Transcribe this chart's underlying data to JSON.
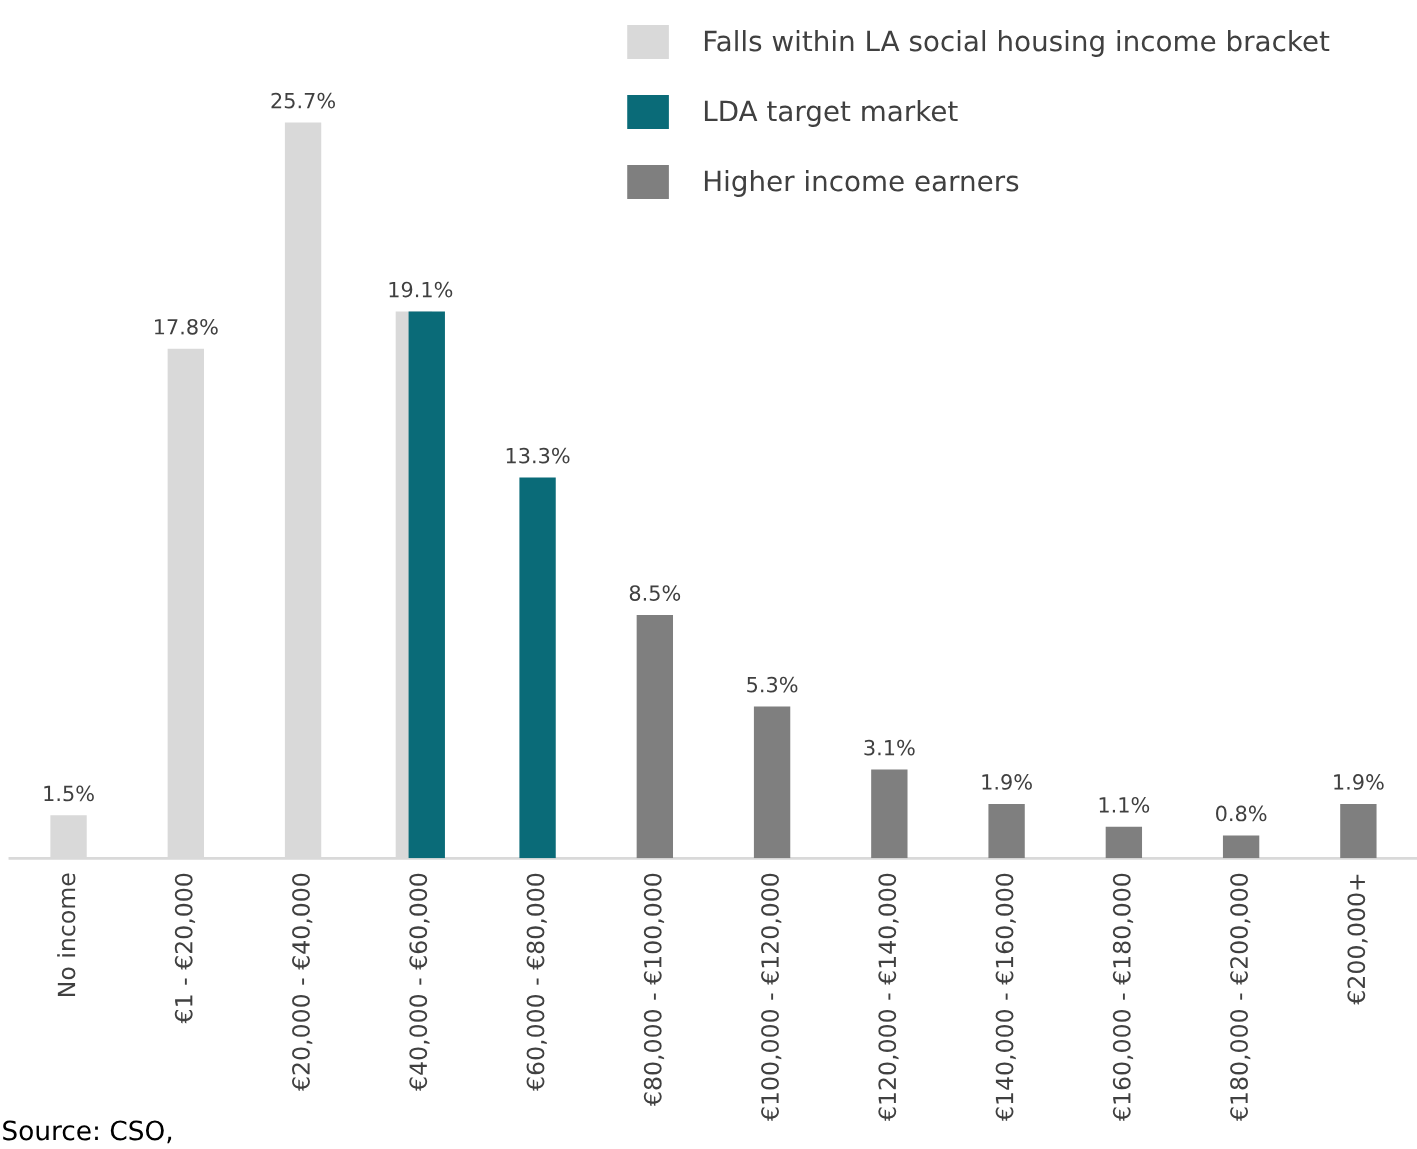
{
  "chart_data": {
    "type": "bar",
    "categories": [
      "No income",
      "€1 - €20,000",
      "€20,000 - €40,000",
      "€40,000 - €60,000",
      "€60,000 - €80,000",
      "€80,000 - €100,000",
      "€100,000 - €120,000",
      "€120,000 - €140,000",
      "€140,000 - €160,000",
      "€160,000 - €180,000",
      "€180,000 - €200,000",
      "€200,000+"
    ],
    "series": [
      {
        "name": "Falls within LA social housing income bracket",
        "color": "#d9d9d9",
        "values": [
          1.5,
          17.8,
          25.7,
          19.1,
          null,
          null,
          null,
          null,
          null,
          null,
          null,
          null
        ],
        "value_labels": [
          "1.5%",
          "17.8%",
          "25.7%",
          null,
          null,
          null,
          null,
          null,
          null,
          null,
          null,
          null
        ]
      },
      {
        "name": "LDA target market",
        "color": "#0a6b78",
        "values": [
          null,
          null,
          null,
          19.1,
          13.3,
          null,
          null,
          null,
          null,
          null,
          null,
          null
        ],
        "value_labels": [
          null,
          null,
          null,
          "19.1%",
          "13.3%",
          null,
          null,
          null,
          null,
          null,
          null,
          null
        ]
      },
      {
        "name": "Higher income earners",
        "color": "#7f7f7f",
        "values": [
          null,
          null,
          null,
          null,
          null,
          8.5,
          5.3,
          3.1,
          1.9,
          1.1,
          0.8,
          1.9
        ],
        "value_labels": [
          null,
          null,
          null,
          null,
          null,
          "8.5%",
          "5.3%",
          "3.1%",
          "1.9%",
          "1.1%",
          "0.8%",
          "1.9%"
        ]
      }
    ],
    "legend": "top",
    "grid": false,
    "annotations": [
      "Source: CSO,"
    ]
  }
}
